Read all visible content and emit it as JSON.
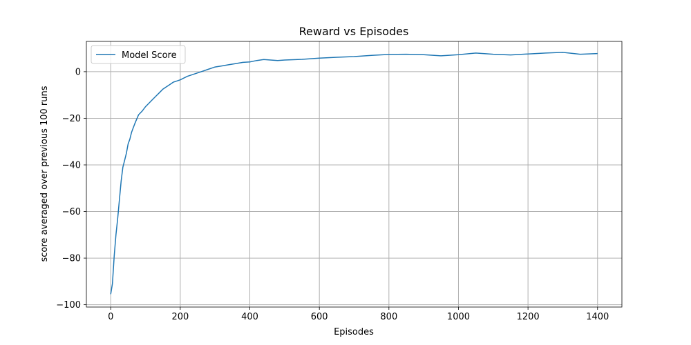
{
  "chart_data": {
    "type": "line",
    "title": "Reward vs Episodes",
    "xlabel": "Episodes",
    "ylabel": "score averaged over previous 100 runs",
    "xlim": [
      -70,
      1470
    ],
    "ylim": [
      -101,
      13
    ],
    "xticks": [
      0,
      200,
      400,
      600,
      800,
      1000,
      1200,
      1400
    ],
    "xtick_labels": [
      "0",
      "200",
      "400",
      "600",
      "800",
      "1000",
      "1200",
      "1400"
    ],
    "yticks": [
      -100,
      -80,
      -60,
      -40,
      -20,
      0
    ],
    "ytick_labels": [
      "−100",
      "−80",
      "−60",
      "−40",
      "−20",
      "0"
    ],
    "grid": true,
    "legend_position": "top-left",
    "colors": {
      "series": "#1f77b4",
      "grid": "#b0b0b0",
      "axis": "#000000"
    },
    "series": [
      {
        "name": "Model Score",
        "x": [
          0,
          5,
          10,
          15,
          20,
          25,
          30,
          35,
          40,
          45,
          50,
          55,
          60,
          65,
          70,
          80,
          90,
          100,
          110,
          120,
          130,
          140,
          150,
          160,
          170,
          180,
          190,
          200,
          220,
          240,
          260,
          280,
          300,
          320,
          340,
          360,
          380,
          400,
          420,
          440,
          460,
          480,
          500,
          550,
          600,
          650,
          700,
          750,
          800,
          850,
          900,
          950,
          1000,
          1050,
          1100,
          1150,
          1200,
          1250,
          1300,
          1350,
          1400
        ],
        "values": [
          -95.5,
          -91,
          -79,
          -70,
          -63,
          -55,
          -47,
          -41,
          -38,
          -35,
          -31,
          -29,
          -26,
          -24,
          -22,
          -18.5,
          -17,
          -15,
          -13.5,
          -12,
          -10.5,
          -9,
          -7.5,
          -6.5,
          -5.5,
          -4.5,
          -4,
          -3.5,
          -2,
          -1,
          0,
          1,
          2,
          2.5,
          3,
          3.5,
          4,
          4.2,
          4.8,
          5.2,
          5,
          4.8,
          5,
          5.3,
          5.8,
          6.2,
          6.5,
          7,
          7.4,
          7.5,
          7.3,
          6.8,
          7.3,
          8,
          7.5,
          7.2,
          7.6,
          8,
          8.3,
          7.5,
          7.8
        ]
      }
    ]
  }
}
